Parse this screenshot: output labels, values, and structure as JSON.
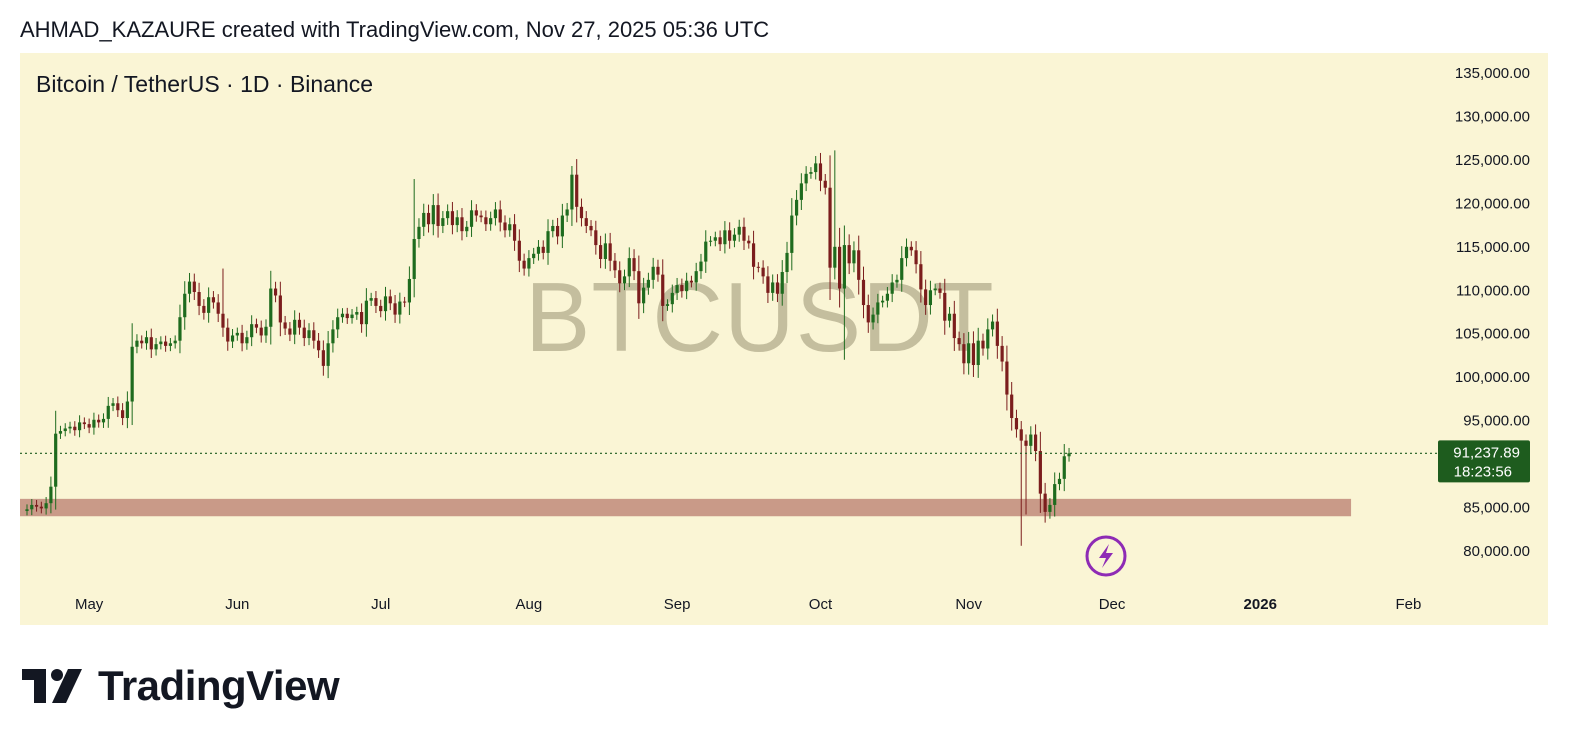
{
  "header": {
    "caption": "AHMAD_KAZAURE created with TradingView.com, Nov 27, 2025 05:36 UTC"
  },
  "chart": {
    "symbol_title": "Bitcoin / TetherUS · 1D · Binance",
    "watermark": "BTCUSDT"
  },
  "brand": {
    "name": "TradingView",
    "logo_icon": "tradingview-logo-icon"
  },
  "colors": {
    "background": "#faf5d5",
    "up": "#1e6b1e",
    "down": "#7b1d1d",
    "support_zone": "#c08a7a",
    "price_label": "#1e5c1e",
    "flash_icon": "#8e2bb5"
  },
  "chart_data": {
    "type": "candlestick",
    "title": "Bitcoin / TetherUS · 1D · Binance",
    "ylim": [
      77000,
      137000
    ],
    "y_ticks": [
      135000,
      130000,
      125000,
      120000,
      115000,
      110000,
      105000,
      100000,
      95000,
      85000,
      80000
    ],
    "y_tick_labels": [
      "135,000.00",
      "130,000.00",
      "125,000.00",
      "120,000.00",
      "115,000.00",
      "110,000.00",
      "105,000.00",
      "100,000.00",
      "95,000.00",
      "85,000.00",
      "80,000.00"
    ],
    "x_ticks": [
      "May",
      "Jun",
      "Jul",
      "Aug",
      "Sep",
      "Oct",
      "Nov",
      "Dec",
      "2026",
      "Feb"
    ],
    "x_range": [
      "2025-04-18",
      "2026-02-03"
    ],
    "x_tick_dates": [
      "2025-05-01",
      "2025-06-01",
      "2025-07-01",
      "2025-08-01",
      "2025-09-01",
      "2025-10-01",
      "2025-11-01",
      "2025-12-01",
      "2026-01-01",
      "2026-02-01"
    ],
    "current_price": 91237.89,
    "current_price_label": "91,237.89",
    "countdown": "18:23:56",
    "support_zone": {
      "low": 84000,
      "high": 86000,
      "from": "2025-04-18",
      "to": "2026-01-20"
    },
    "closes_start_date": "2025-04-18",
    "closes": [
      84800,
      85300,
      85100,
      84900,
      85500,
      87400,
      93500,
      93800,
      94100,
      94300,
      93900,
      94800,
      94600,
      94200,
      95100,
      94800,
      95200,
      96700,
      97000,
      96200,
      95300,
      97200,
      103500,
      104200,
      103900,
      104600,
      103200,
      103800,
      104100,
      103600,
      103900,
      104200,
      106900,
      109600,
      111000,
      109800,
      108200,
      107400,
      109200,
      108600,
      107300,
      105700,
      104100,
      104800,
      105100,
      103900,
      104600,
      106100,
      105700,
      104800,
      105800,
      110200,
      109400,
      106300,
      105600,
      104900,
      106600,
      105700,
      104500,
      105400,
      104200,
      103100,
      101300,
      103900,
      105500,
      106900,
      107300,
      106800,
      107200,
      107500,
      106100,
      108800,
      109100,
      108200,
      107600,
      109300,
      108500,
      107200,
      108700,
      108600,
      111300,
      115900,
      117300,
      118900,
      117600,
      119800,
      117400,
      118300,
      119100,
      117500,
      118400,
      116800,
      117300,
      119200,
      118600,
      118400,
      117600,
      118300,
      119300,
      117800,
      116900,
      117600,
      115700,
      113400,
      112500,
      113700,
      114200,
      115000,
      114300,
      116800,
      117400,
      116200,
      118600,
      119300,
      123300,
      119600,
      118300,
      117400,
      116900,
      115200,
      113600,
      115400,
      113400,
      112300,
      110800,
      111600,
      113700,
      112200,
      108500,
      110300,
      111200,
      112700,
      111800,
      108200,
      108400,
      109700,
      110600,
      109900,
      111100,
      110900,
      112200,
      113300,
      115600,
      115700,
      116100,
      115300,
      116900,
      115700,
      116400,
      117300,
      115700,
      115400,
      112700,
      112600,
      111600,
      109700,
      110900,
      109600,
      112100,
      114300,
      118600,
      120400,
      122300,
      123400,
      123600,
      124600,
      122600,
      121800,
      112600,
      115000,
      110200,
      115200,
      113100,
      114600,
      111200,
      108300,
      106300,
      107200,
      108600,
      108800,
      109600,
      110900,
      111200,
      113700,
      115000,
      114600,
      113000,
      110100,
      108300,
      110000,
      110200,
      109700,
      106500,
      107300,
      104500,
      103800,
      101600,
      103900,
      101400,
      104200,
      103300,
      105500,
      106400,
      103600,
      101800,
      98000,
      95300,
      94000,
      92700,
      92100,
      93400,
      91500,
      86600,
      84500,
      85300,
      87700,
      88300,
      90900,
      91237.89
    ],
    "low_wicks": {
      "0": 84100,
      "171": 102000,
      "208": 80600,
      "209": 84200
    },
    "high_wicks": {
      "41": 112500,
      "81": 122800,
      "114": 124300,
      "169": 126100
    }
  }
}
